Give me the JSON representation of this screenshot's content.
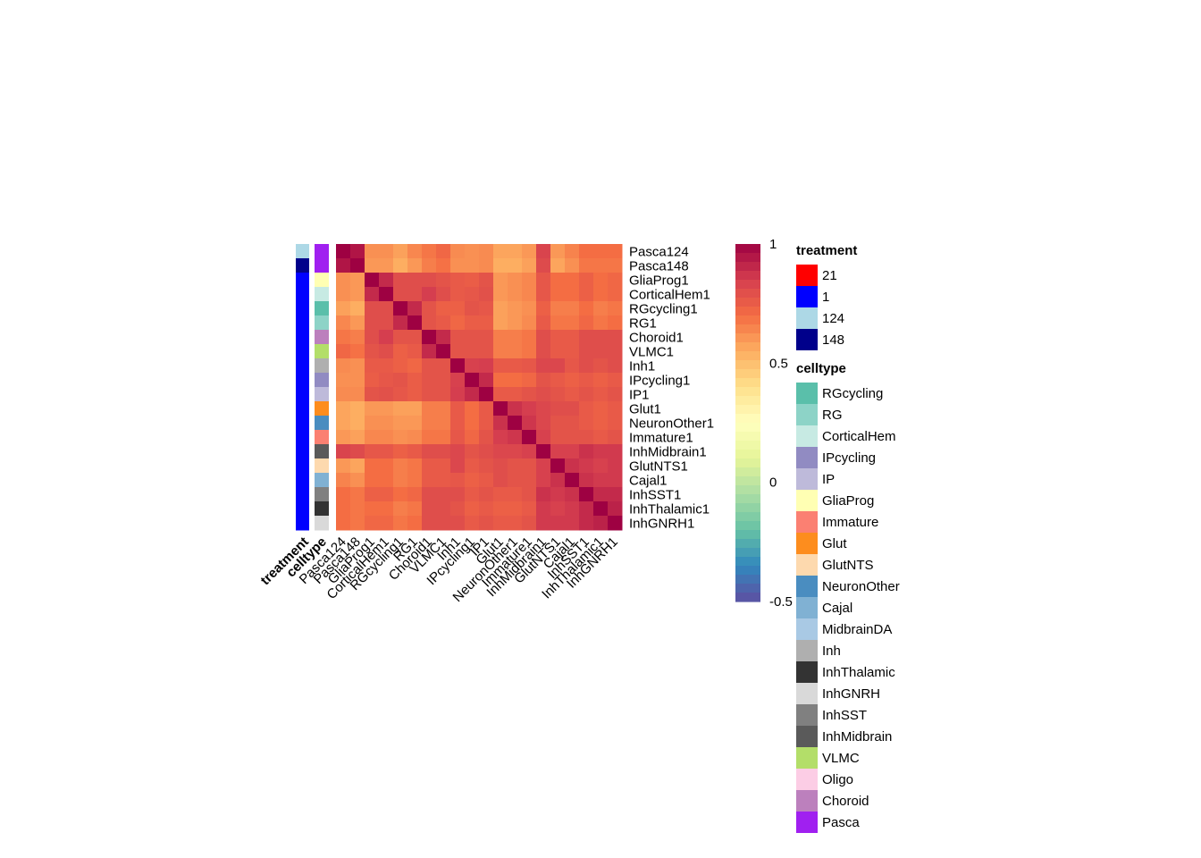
{
  "chart_data": {
    "type": "heatmap",
    "rows": [
      "Pasca124",
      "Pasca148",
      "GliaProg1",
      "CorticalHem1",
      "RGcycling1",
      "RG1",
      "Choroid1",
      "VLMC1",
      "Inh1",
      "IPcycling1",
      "IP1",
      "Glut1",
      "NeuronOther1",
      "Immature1",
      "InhMidbrain1",
      "GlutNTS1",
      "Cajal1",
      "InhSST1",
      "InhThalamic1",
      "InhGNRH1"
    ],
    "columns": [
      "Pasca124",
      "Pasca148",
      "GliaProg1",
      "CorticalHem1",
      "RGcycling1",
      "RG1",
      "Choroid1",
      "VLMC1",
      "Inh1",
      "IPcycling1",
      "IP1",
      "Glut1",
      "NeuronOther1",
      "Immature1",
      "InhMidbrain1",
      "GlutNTS1",
      "Cajal1",
      "InhSST1",
      "InhThalamic1",
      "InhGNRH1"
    ],
    "values": [
      [
        1.0,
        0.95,
        0.62,
        0.62,
        0.58,
        0.64,
        0.68,
        0.72,
        0.63,
        0.62,
        0.63,
        0.57,
        0.57,
        0.6,
        0.83,
        0.6,
        0.65,
        0.7,
        0.7,
        0.7
      ],
      [
        0.95,
        1.0,
        0.6,
        0.6,
        0.55,
        0.6,
        0.66,
        0.69,
        0.62,
        0.62,
        0.63,
        0.55,
        0.55,
        0.58,
        0.81,
        0.57,
        0.62,
        0.68,
        0.68,
        0.68
      ],
      [
        0.62,
        0.6,
        1.0,
        0.9,
        0.8,
        0.8,
        0.8,
        0.78,
        0.76,
        0.75,
        0.78,
        0.6,
        0.62,
        0.64,
        0.77,
        0.7,
        0.7,
        0.74,
        0.7,
        0.72
      ],
      [
        0.62,
        0.6,
        0.9,
        1.0,
        0.8,
        0.8,
        0.85,
        0.8,
        0.76,
        0.77,
        0.79,
        0.6,
        0.62,
        0.64,
        0.77,
        0.7,
        0.7,
        0.74,
        0.7,
        0.72
      ],
      [
        0.58,
        0.55,
        0.8,
        0.8,
        1.0,
        0.9,
        0.78,
        0.74,
        0.74,
        0.78,
        0.77,
        0.58,
        0.6,
        0.62,
        0.74,
        0.66,
        0.66,
        0.7,
        0.66,
        0.68
      ],
      [
        0.64,
        0.6,
        0.8,
        0.8,
        0.9,
        1.0,
        0.78,
        0.76,
        0.72,
        0.75,
        0.75,
        0.58,
        0.6,
        0.63,
        0.76,
        0.68,
        0.68,
        0.72,
        0.68,
        0.7
      ],
      [
        0.68,
        0.66,
        0.8,
        0.85,
        0.78,
        0.78,
        1.0,
        0.9,
        0.78,
        0.78,
        0.78,
        0.66,
        0.66,
        0.68,
        0.8,
        0.76,
        0.76,
        0.8,
        0.8,
        0.8
      ],
      [
        0.72,
        0.69,
        0.78,
        0.8,
        0.74,
        0.76,
        0.9,
        1.0,
        0.78,
        0.78,
        0.78,
        0.66,
        0.66,
        0.68,
        0.8,
        0.76,
        0.76,
        0.8,
        0.8,
        0.8
      ],
      [
        0.63,
        0.62,
        0.76,
        0.76,
        0.74,
        0.72,
        0.78,
        0.78,
        1.0,
        0.84,
        0.85,
        0.76,
        0.76,
        0.77,
        0.82,
        0.82,
        0.77,
        0.8,
        0.78,
        0.8
      ],
      [
        0.62,
        0.62,
        0.75,
        0.77,
        0.78,
        0.75,
        0.78,
        0.78,
        0.84,
        1.0,
        0.9,
        0.7,
        0.7,
        0.72,
        0.78,
        0.76,
        0.74,
        0.76,
        0.74,
        0.76
      ],
      [
        0.63,
        0.63,
        0.78,
        0.79,
        0.77,
        0.75,
        0.78,
        0.78,
        0.85,
        0.9,
        1.0,
        0.76,
        0.76,
        0.78,
        0.8,
        0.78,
        0.76,
        0.78,
        0.76,
        0.78
      ],
      [
        0.57,
        0.55,
        0.6,
        0.6,
        0.58,
        0.58,
        0.66,
        0.66,
        0.76,
        0.7,
        0.76,
        1.0,
        0.88,
        0.85,
        0.82,
        0.8,
        0.8,
        0.76,
        0.74,
        0.76
      ],
      [
        0.57,
        0.55,
        0.62,
        0.62,
        0.6,
        0.6,
        0.66,
        0.66,
        0.76,
        0.7,
        0.76,
        0.88,
        1.0,
        0.87,
        0.82,
        0.78,
        0.78,
        0.76,
        0.74,
        0.76
      ],
      [
        0.6,
        0.58,
        0.64,
        0.64,
        0.62,
        0.63,
        0.68,
        0.68,
        0.77,
        0.72,
        0.78,
        0.85,
        0.87,
        1.0,
        0.84,
        0.78,
        0.78,
        0.78,
        0.76,
        0.78
      ],
      [
        0.83,
        0.81,
        0.77,
        0.77,
        0.74,
        0.76,
        0.8,
        0.8,
        0.82,
        0.78,
        0.8,
        0.82,
        0.82,
        0.84,
        1.0,
        0.84,
        0.84,
        0.88,
        0.86,
        0.86
      ],
      [
        0.6,
        0.57,
        0.7,
        0.7,
        0.66,
        0.68,
        0.76,
        0.76,
        0.82,
        0.76,
        0.78,
        0.8,
        0.78,
        0.78,
        0.84,
        1.0,
        0.88,
        0.86,
        0.84,
        0.86
      ],
      [
        0.65,
        0.62,
        0.7,
        0.7,
        0.66,
        0.68,
        0.76,
        0.76,
        0.77,
        0.74,
        0.76,
        0.8,
        0.78,
        0.78,
        0.84,
        0.88,
        1.0,
        0.88,
        0.86,
        0.86
      ],
      [
        0.7,
        0.68,
        0.74,
        0.74,
        0.7,
        0.72,
        0.8,
        0.8,
        0.8,
        0.76,
        0.78,
        0.76,
        0.76,
        0.78,
        0.88,
        0.86,
        0.88,
        1.0,
        0.9,
        0.9
      ],
      [
        0.7,
        0.68,
        0.7,
        0.7,
        0.66,
        0.68,
        0.8,
        0.8,
        0.78,
        0.74,
        0.76,
        0.74,
        0.74,
        0.76,
        0.86,
        0.84,
        0.86,
        0.9,
        1.0,
        0.92
      ],
      [
        0.7,
        0.68,
        0.72,
        0.72,
        0.68,
        0.7,
        0.8,
        0.8,
        0.8,
        0.76,
        0.78,
        0.76,
        0.76,
        0.78,
        0.86,
        0.86,
        0.86,
        0.9,
        0.92,
        1.0
      ]
    ],
    "row_treatment": [
      "124",
      "148",
      "1",
      "1",
      "1",
      "1",
      "1",
      "1",
      "1",
      "1",
      "1",
      "1",
      "1",
      "1",
      "1",
      "1",
      "1",
      "1",
      "1",
      "1"
    ],
    "row_celltype": [
      "Pasca",
      "Pasca",
      "GliaProg",
      "CorticalHem",
      "RGcycling",
      "RG",
      "Choroid",
      "VLMC",
      "Inh",
      "IPcycling",
      "IP",
      "Glut",
      "NeuronOther",
      "Immature",
      "InhMidbrain",
      "GlutNTS",
      "Cajal",
      "InhSST",
      "InhThalamic",
      "InhGNRH"
    ],
    "annotation_labels": {
      "treatment": "treatment",
      "celltype": "celltype"
    },
    "color_scale": {
      "min": -0.5,
      "max": 1,
      "ticks": [
        {
          "value": 1,
          "label": "1"
        },
        {
          "value": 0.5,
          "label": "0.5"
        },
        {
          "value": 0,
          "label": "0"
        },
        {
          "value": -0.5,
          "label": "-0.5"
        }
      ],
      "palette": "Spectral",
      "stops": [
        "#5E4FA2",
        "#3288BD",
        "#66C2A5",
        "#ABDDA4",
        "#E6F598",
        "#FFFFBF",
        "#FEE08B",
        "#FDAE61",
        "#F46D43",
        "#D53E4F",
        "#9E0142"
      ]
    },
    "legend_placement": "right",
    "treatment_legend": {
      "title": "treatment",
      "items": [
        {
          "label": "21",
          "color": "#FF0000"
        },
        {
          "label": "1",
          "color": "#0000FF"
        },
        {
          "label": "124",
          "color": "#ADD8E6"
        },
        {
          "label": "148",
          "color": "#00008B"
        }
      ]
    },
    "celltype_legend": {
      "title": "celltype",
      "items": [
        {
          "label": "RGcycling",
          "color": "#5ABFAA"
        },
        {
          "label": "RG",
          "color": "#8DD3C7"
        },
        {
          "label": "CorticalHem",
          "color": "#C7EAE3"
        },
        {
          "label": "IPcycling",
          "color": "#918BC2"
        },
        {
          "label": "IP",
          "color": "#BEBADA"
        },
        {
          "label": "GliaProg",
          "color": "#FFFFB3"
        },
        {
          "label": "Immature",
          "color": "#FB8072"
        },
        {
          "label": "Glut",
          "color": "#FD8D1E"
        },
        {
          "label": "GlutNTS",
          "color": "#FDD9AE"
        },
        {
          "label": "NeuronOther",
          "color": "#4A8DC0"
        },
        {
          "label": "Cajal",
          "color": "#80B1D3"
        },
        {
          "label": "MidbrainDA",
          "color": "#A9C9E4"
        },
        {
          "label": "Inh",
          "color": "#AFAFAF"
        },
        {
          "label": "InhThalamic",
          "color": "#333333"
        },
        {
          "label": "InhGNRH",
          "color": "#D9D9D9"
        },
        {
          "label": "InhSST",
          "color": "#808080"
        },
        {
          "label": "InhMidbrain",
          "color": "#5A5A5A"
        },
        {
          "label": "VLMC",
          "color": "#B3DE69"
        },
        {
          "label": "Oligo",
          "color": "#FCCDE5"
        },
        {
          "label": "Choroid",
          "color": "#BC80BD"
        },
        {
          "label": "Pasca",
          "color": "#A020F0"
        }
      ]
    }
  }
}
